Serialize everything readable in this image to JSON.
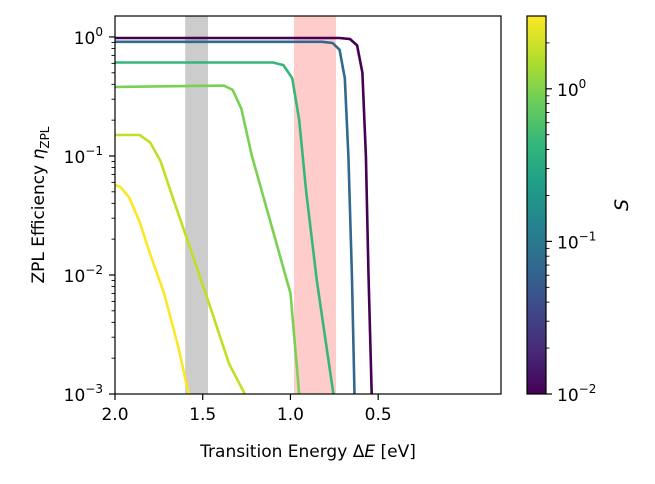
{
  "chart_data": {
    "type": "line",
    "title": "",
    "xlabel": {
      "main": "Transition Energy Δ",
      "var": "E",
      "unit": " [eV]"
    },
    "ylabel": {
      "main": "ZPL Efficiency ",
      "var": "η",
      "sub": "ZPL"
    },
    "xlim": [
      2.0,
      -0.2
    ],
    "ylim": [
      0.001,
      1.5
    ],
    "yscale": "log",
    "x_ticks": [
      {
        "value": 2.0,
        "label": "2.0"
      },
      {
        "value": 1.5,
        "label": "1.5"
      },
      {
        "value": 1.0,
        "label": "1.0"
      },
      {
        "value": 0.5,
        "label": "0.5"
      }
    ],
    "y_ticks": [
      {
        "value": 0.001,
        "base": "10",
        "exp": "−3"
      },
      {
        "value": 0.01,
        "base": "10",
        "exp": "−2"
      },
      {
        "value": 0.1,
        "base": "10",
        "exp": "−1"
      },
      {
        "value": 1,
        "base": "10",
        "exp": "0"
      }
    ],
    "bands": [
      {
        "name": "gray-band",
        "x_range": [
          1.47,
          1.6
        ],
        "color": "#cccccc"
      },
      {
        "name": "pink-band",
        "x_range": [
          0.74,
          0.98
        ],
        "color": "#ffcccc"
      }
    ],
    "series": [
      {
        "name": "S = 0.01",
        "color": "#440154",
        "points": [
          [
            2.0,
            0.98
          ],
          [
            0.72,
            0.98
          ],
          [
            0.66,
            0.96
          ],
          [
            0.62,
            0.85
          ],
          [
            0.59,
            0.5
          ],
          [
            0.57,
            0.1
          ],
          [
            0.555,
            0.01
          ],
          [
            0.537,
            0.001
          ]
        ]
      },
      {
        "name": "S = 0.05",
        "color": "#31688e",
        "points": [
          [
            2.0,
            0.91
          ],
          [
            0.82,
            0.91
          ],
          [
            0.76,
            0.89
          ],
          [
            0.72,
            0.78
          ],
          [
            0.69,
            0.45
          ],
          [
            0.67,
            0.1
          ],
          [
            0.65,
            0.01
          ],
          [
            0.635,
            0.001
          ]
        ]
      },
      {
        "name": "S = 0.5",
        "color": "#35b779",
        "points": [
          [
            2.0,
            0.61
          ],
          [
            1.1,
            0.61
          ],
          [
            1.04,
            0.58
          ],
          [
            0.99,
            0.45
          ],
          [
            0.95,
            0.2
          ],
          [
            0.91,
            0.05
          ],
          [
            0.85,
            0.009
          ],
          [
            0.755,
            0.001
          ]
        ]
      },
      {
        "name": "S = 1",
        "color": "#7ad151",
        "points": [
          [
            2.0,
            0.38
          ],
          [
            1.38,
            0.39
          ],
          [
            1.33,
            0.36
          ],
          [
            1.28,
            0.25
          ],
          [
            1.22,
            0.1
          ],
          [
            1.12,
            0.03
          ],
          [
            1.0,
            0.007
          ],
          [
            0.95,
            0.001
          ]
        ]
      },
      {
        "name": "S = 2",
        "color": "#c2df23",
        "points": [
          [
            2.0,
            0.15
          ],
          [
            1.86,
            0.15
          ],
          [
            1.8,
            0.13
          ],
          [
            1.74,
            0.09
          ],
          [
            1.66,
            0.04
          ],
          [
            1.56,
            0.015
          ],
          [
            1.45,
            0.005
          ],
          [
            1.35,
            0.0018
          ],
          [
            1.26,
            0.001
          ]
        ]
      },
      {
        "name": "S = 3",
        "color": "#fde725",
        "points": [
          [
            2.0,
            0.057
          ],
          [
            1.97,
            0.055
          ],
          [
            1.92,
            0.045
          ],
          [
            1.86,
            0.028
          ],
          [
            1.8,
            0.015
          ],
          [
            1.72,
            0.007
          ],
          [
            1.64,
            0.0025
          ],
          [
            1.58,
            0.001
          ]
        ]
      }
    ],
    "colorbar": {
      "label": "S",
      "scale": "log",
      "range": [
        0.01,
        3
      ],
      "colormap": [
        "#440154",
        "#482878",
        "#3e4989",
        "#31688e",
        "#26828e",
        "#1f9e89",
        "#35b779",
        "#6ece58",
        "#b5de2b",
        "#fde725"
      ],
      "ticks": [
        {
          "value": 0.01,
          "base": "10",
          "exp": "−2"
        },
        {
          "value": 0.1,
          "base": "10",
          "exp": "−1"
        },
        {
          "value": 1,
          "base": "10",
          "exp": "0"
        }
      ]
    }
  }
}
